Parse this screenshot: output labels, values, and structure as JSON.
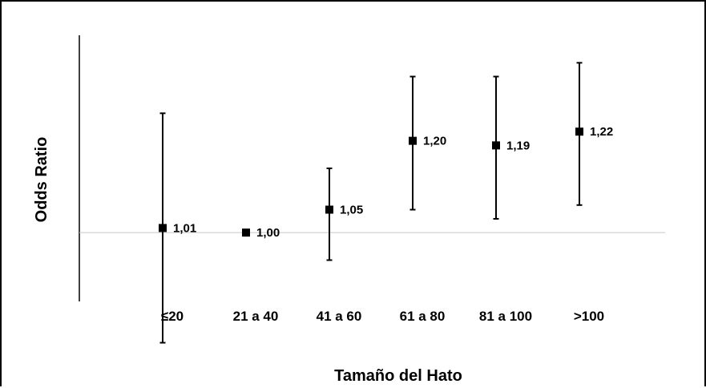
{
  "chart_data": {
    "type": "scatter",
    "xlabel": "Tamaño del Hato",
    "ylabel": "Odds Ratio",
    "categories": [
      "≤20",
      "21 a 40",
      "41 a 60",
      "61 a 80",
      "81 a 100",
      ">100"
    ],
    "series": [
      {
        "values": [
          1.01,
          1.0,
          1.05,
          1.2,
          1.19,
          1.22
        ],
        "lower": [
          0.76,
          1.0,
          0.94,
          1.05,
          1.03,
          1.06
        ],
        "upper": [
          1.26,
          1.0,
          1.14,
          1.34,
          1.34,
          1.37
        ],
        "labels": [
          "1,01",
          "1,00",
          "1,05",
          "1,20",
          "1,19",
          "1,22"
        ]
      }
    ],
    "reference_line": 1.0,
    "ylim": [
      0.85,
      1.43
    ],
    "grid": false,
    "legend": "none"
  }
}
